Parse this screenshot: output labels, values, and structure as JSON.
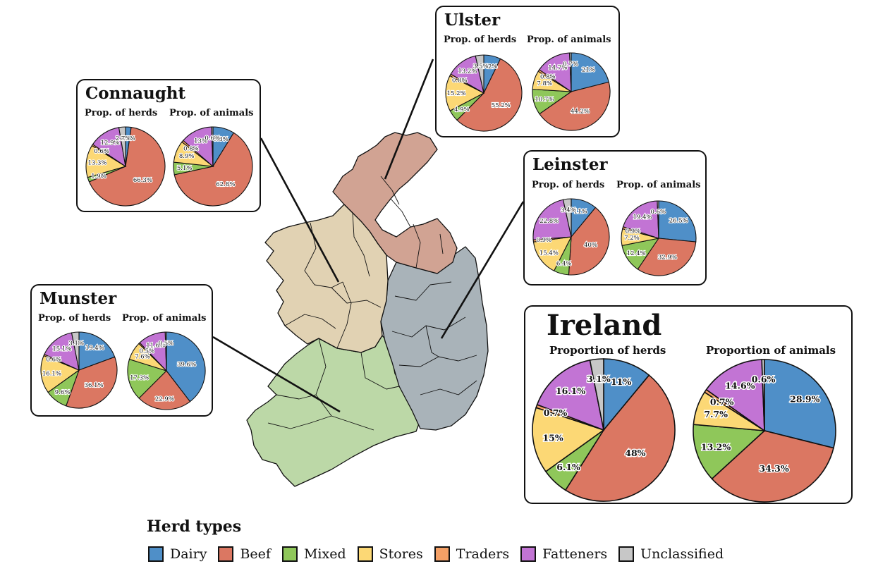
{
  "legend": {
    "title": "Herd types",
    "items": [
      {
        "key": "dairy",
        "label": "Dairy",
        "color": "#4f8fc8"
      },
      {
        "key": "beef",
        "label": "Beef",
        "color": "#db7762"
      },
      {
        "key": "mixed",
        "label": "Mixed",
        "color": "#8fc75a"
      },
      {
        "key": "stores",
        "label": "Stores",
        "color": "#fcd875"
      },
      {
        "key": "traders",
        "label": "Traders",
        "color": "#f4a066"
      },
      {
        "key": "fatteners",
        "label": "Fatteners",
        "color": "#c274d4"
      },
      {
        "key": "unclassified",
        "label": "Unclassified",
        "color": "#c7c7c7"
      }
    ]
  },
  "map": {
    "provinces": [
      {
        "name": "ulster",
        "color": "#d1a393"
      },
      {
        "name": "connaught",
        "color": "#e1d2b3"
      },
      {
        "name": "leinster",
        "color": "#a9b3b9"
      },
      {
        "name": "munster",
        "color": "#bcd8a7"
      }
    ]
  },
  "chart_data": [
    {
      "type": "pie",
      "title": "Ulster",
      "subtitle": "Prop. of herds",
      "categories": [
        "Dairy",
        "Beef",
        "Mixed",
        "Stores",
        "Traders",
        "Fatteners",
        "Unclassified"
      ],
      "values": [
        7.2,
        55.2,
        4.9,
        15.2,
        0.8,
        13.2,
        3.5
      ],
      "labels": [
        "7.2%",
        "55.2%",
        "4.9%",
        "15.2%",
        "0.8%",
        "13.2%",
        "3.5%"
      ]
    },
    {
      "type": "pie",
      "title": "Ulster",
      "subtitle": "Prop. of animals",
      "categories": [
        "Dairy",
        "Beef",
        "Mixed",
        "Stores",
        "Traders",
        "Fatteners",
        "Unclassified"
      ],
      "values": [
        21,
        44.2,
        10.7,
        7.8,
        0.8,
        14.7,
        0.7
      ],
      "labels": [
        "21%",
        "44.2%",
        "10.7%",
        "7.8%",
        "0.8%",
        "14.7%",
        "0.7%"
      ]
    },
    {
      "type": "pie",
      "title": "Connaught",
      "subtitle": "Prop. of herds",
      "categories": [
        "Dairy",
        "Beef",
        "Mixed",
        "Stores",
        "Traders",
        "Fatteners",
        "Unclassified"
      ],
      "values": [
        2.3,
        66.3,
        1.9,
        13.3,
        0.6,
        12.9,
        2.7
      ],
      "labels": [
        "2.3%",
        "66.3%",
        "1.9%",
        "13.3%",
        "0.6%",
        "12.9%",
        "2.7%"
      ]
    },
    {
      "type": "pie",
      "title": "Connaught",
      "subtitle": "Prop. of animals",
      "categories": [
        "Dairy",
        "Beef",
        "Mixed",
        "Stores",
        "Traders",
        "Fatteners",
        "Unclassified"
      ],
      "values": [
        8.8,
        62.8,
        5.1,
        8.9,
        0.8,
        13,
        0.6
      ],
      "labels": [
        "8.8%",
        "62.8%",
        "5.1%",
        "8.9%",
        "0.8%",
        "13%",
        "0.6%"
      ]
    },
    {
      "type": "pie",
      "title": "Leinster",
      "subtitle": "Prop. of herds",
      "categories": [
        "Dairy",
        "Beef",
        "Mixed",
        "Stores",
        "Traders",
        "Fatteners",
        "Unclassified"
      ],
      "values": [
        11,
        40,
        6.4,
        15.4,
        0.9,
        22.8,
        3.4
      ],
      "labels": [
        "11%",
        "40%",
        "6.4%",
        "15.4%",
        "0.9%",
        "22.8%",
        "3.4%"
      ]
    },
    {
      "type": "pie",
      "title": "Leinster",
      "subtitle": "Prop. of animals",
      "categories": [
        "Dairy",
        "Beef",
        "Mixed",
        "Stores",
        "Traders",
        "Fatteners",
        "Unclassified"
      ],
      "values": [
        26.5,
        32.9,
        12.4,
        7.2,
        0.9,
        19.4,
        0.6
      ],
      "labels": [
        "26.5%",
        "32.9%",
        "12.4%",
        "7.2%",
        "0.9%",
        "19.4%",
        "0.6%"
      ]
    },
    {
      "type": "pie",
      "title": "Munster",
      "subtitle": "Prop. of herds",
      "categories": [
        "Dairy",
        "Beef",
        "Mixed",
        "Stores",
        "Traders",
        "Fatteners",
        "Unclassified"
      ],
      "values": [
        19.4,
        36.1,
        9.6,
        16.1,
        0.6,
        15.1,
        3.1
      ],
      "labels": [
        "19.4%",
        "36.1%",
        "9.6%",
        "16.1%",
        "0.6%",
        "15.1%",
        "3.1%"
      ]
    },
    {
      "type": "pie",
      "title": "Munster",
      "subtitle": "Prop. of animals",
      "categories": [
        "Dairy",
        "Beef",
        "Mixed",
        "Stores",
        "Traders",
        "Fatteners",
        "Unclassified"
      ],
      "values": [
        39.6,
        22.9,
        17.3,
        7.6,
        0.5,
        11.6,
        0.5
      ],
      "labels": [
        "39.6%",
        "22.9%",
        "17.3%",
        "7.6%",
        "0.5%",
        "11.6%",
        "0.5%"
      ]
    },
    {
      "type": "pie",
      "title": "Ireland",
      "subtitle": "Proportion of herds",
      "categories": [
        "Dairy",
        "Beef",
        "Mixed",
        "Stores",
        "Traders",
        "Fatteners",
        "Unclassified"
      ],
      "values": [
        11,
        48,
        6.1,
        15,
        0.7,
        16.1,
        3.1
      ],
      "labels": [
        "11%",
        "48%",
        "6.1%",
        "15%",
        "0.7%",
        "16.1%",
        "3.1%"
      ]
    },
    {
      "type": "pie",
      "title": "Ireland",
      "subtitle": "Proportion of animals",
      "categories": [
        "Dairy",
        "Beef",
        "Mixed",
        "Stores",
        "Traders",
        "Fatteners",
        "Unclassified"
      ],
      "values": [
        28.9,
        34.3,
        13.2,
        7.7,
        0.7,
        14.6,
        0.6
      ],
      "labels": [
        "28.9%",
        "34.3%",
        "13.2%",
        "7.7%",
        "0.7%",
        "14.6%",
        "0.6%"
      ]
    }
  ]
}
